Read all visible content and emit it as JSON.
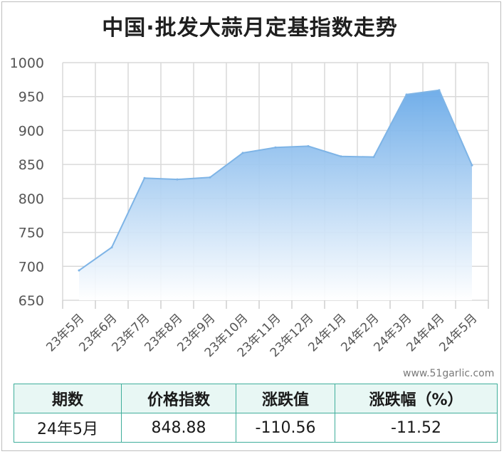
{
  "title": "中国·批发大蒜月定基指数走势",
  "watermark": "www.51garlic.com",
  "colors": {
    "line": "#7eb4e6",
    "fill_top": "#6aaae8",
    "fill_bottom": "#ffffff",
    "grid": "#d9d9d9",
    "table_border": "#3fae9b",
    "table_header_bg": "#e8f7f4"
  },
  "chart_data": {
    "type": "area",
    "title": "中国·批发大蒜月定基指数走势",
    "categories": [
      "23年5月",
      "23年6月",
      "23年7月",
      "23年8月",
      "23年9月",
      "23年10月",
      "23年11月",
      "23年12月",
      "24年1月",
      "24年2月",
      "24年3月",
      "24年4月",
      "24年5月"
    ],
    "series": [
      {
        "values": [
          694.0,
          728.0,
          830.0,
          828.0,
          831.0,
          867.0,
          875.0,
          877.0,
          862.0,
          861.0,
          953.0,
          959.44,
          848.88
        ]
      }
    ],
    "yticks": [
      650,
      700,
      750,
      800,
      850,
      900,
      950,
      1000
    ],
    "ylim": [
      650,
      1000
    ],
    "grid": true,
    "xlabel": "",
    "ylabel": ""
  },
  "table": {
    "headers": [
      "期数",
      "价格指数",
      "涨跌值",
      "涨跌幅（%）"
    ],
    "row": [
      "24年5月",
      "848.88",
      "-110.56",
      "-11.52"
    ]
  }
}
